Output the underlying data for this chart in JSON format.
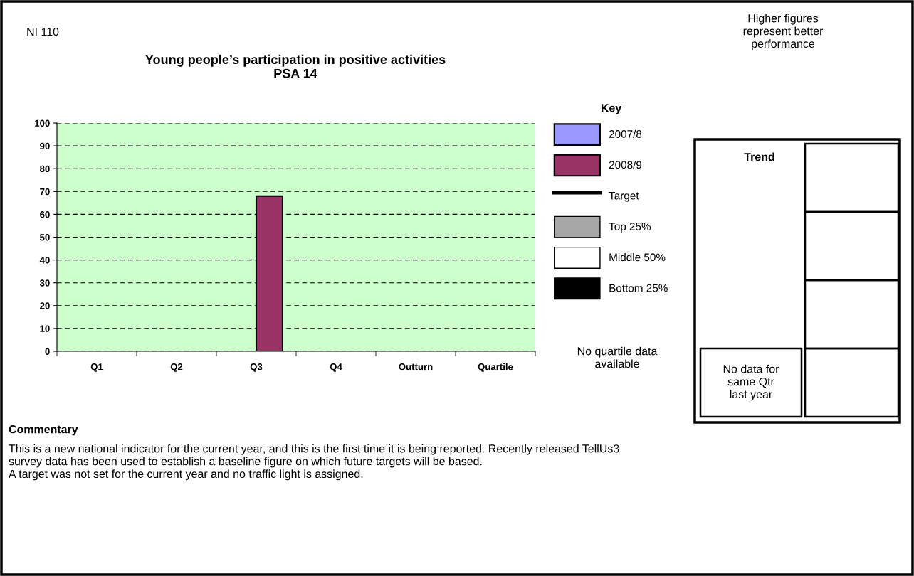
{
  "chart_data": {
    "type": "bar",
    "title": "Young people’s participation in positive activities\nPSA 14",
    "categories": [
      "Q1",
      "Q2",
      "Q3",
      "Q4",
      "Outturn",
      "Quartile"
    ],
    "series": [
      {
        "name": "2007/8",
        "color": "#9999ff",
        "values": [
          null,
          null,
          null,
          null,
          null,
          null
        ]
      },
      {
        "name": "2008/9",
        "color": "#993366",
        "values": [
          null,
          null,
          68,
          null,
          null,
          null
        ]
      },
      {
        "name": "Target",
        "type": "line",
        "color": "#000000",
        "values": [
          null,
          null,
          null,
          null,
          null,
          null
        ]
      },
      {
        "name": "Top 25%",
        "type": "area",
        "color": "#a6a6a6",
        "values": [
          null,
          null,
          null,
          null,
          null,
          null
        ]
      },
      {
        "name": "Middle 50%",
        "type": "area",
        "color": "#ffffff",
        "values": [
          null,
          null,
          null,
          null,
          null,
          null
        ]
      },
      {
        "name": "Bottom 25%",
        "type": "area",
        "color": "#000000",
        "values": [
          null,
          null,
          null,
          null,
          null,
          null
        ]
      }
    ],
    "ylim": [
      0,
      100
    ],
    "yticks": [
      0,
      10,
      20,
      30,
      40,
      50,
      60,
      70,
      80,
      90,
      100
    ],
    "grid": "y",
    "legend": "right",
    "legend_title": "Key",
    "annotations": [
      "NI 110",
      "Higher figures\nrepresent better\nperformance",
      "No quartile data\navailable",
      "Trend",
      "No data for\nsame Qtr\nlast year",
      "Commentary",
      "This is a new national indicator for the current year, and this is the first time it is being reported. Recently released TellUs3\nsurvey data has been used to establish a baseline figure on which future targets will be based.\nA target was not set for the current year and no traffic light is assigned."
    ]
  }
}
